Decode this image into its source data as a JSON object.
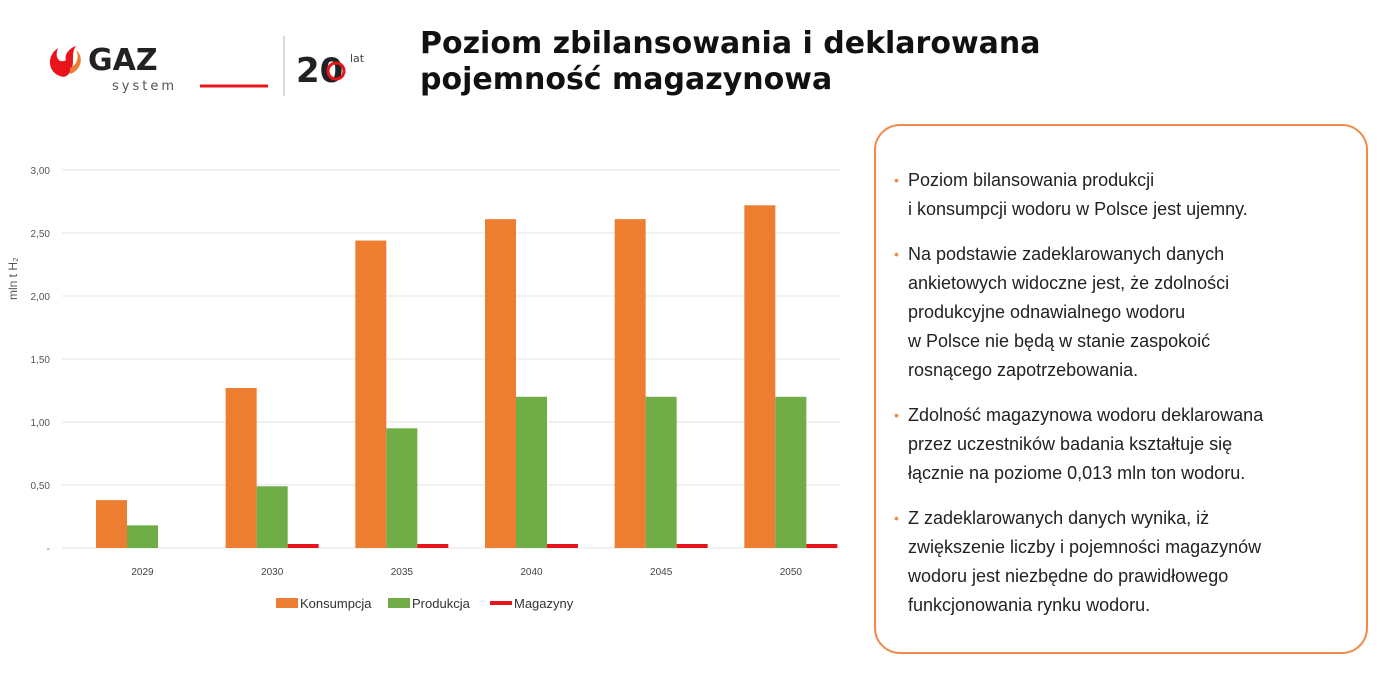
{
  "header": {
    "logo_text": "GAZ",
    "logo_subtext": "system",
    "anniversary_text": "20",
    "anniversary_suffix": "lat",
    "title_line1": "Poziom zbilansowania i deklarowana",
    "title_line2": "pojemność magazynowa"
  },
  "colors": {
    "accent": "#f08a4b",
    "consumption": "#ed7d31",
    "production": "#70ad47",
    "storage": "#e8141c"
  },
  "chart_data": {
    "type": "bar",
    "ylabel": "mln t H₂",
    "ylim": [
      0,
      3
    ],
    "yticks": [
      "-",
      "0,50",
      "1,00",
      "1,50",
      "2,00",
      "2,50",
      "3,00"
    ],
    "categories": [
      "2029",
      "2030",
      "2035",
      "2040",
      "2045",
      "2050"
    ],
    "series": [
      {
        "name": "Konsumpcja",
        "values": [
          0.38,
          1.27,
          2.44,
          2.61,
          2.61,
          2.72
        ]
      },
      {
        "name": "Produkcja",
        "values": [
          0.18,
          0.49,
          0.95,
          1.2,
          1.2,
          1.2
        ]
      },
      {
        "name": "Magazyny",
        "values": [
          null,
          0.013,
          0.013,
          0.013,
          0.013,
          0.013
        ]
      }
    ],
    "legend_position": "bottom",
    "grid": true
  },
  "panel": {
    "bullets": [
      "Poziom bilansowania produkcji\ni konsumpcji wodoru w Polsce jest ujemny.",
      "Na podstawie zadeklarowanych danych\nankietowych widoczne jest, że zdolności\nprodukcyjne odnawialnego wodoru\nw Polsce nie będą w stanie zaspokoić\nrosnącego zapotrzebowania.",
      "Zdolność magazynowa wodoru deklarowana\nprzez uczestników badania kształtuje się\nłącznie na poziome 0,013 mln ton wodoru.",
      "Z zadeklarowanych danych wynika, iż\nzwiększenie liczby i pojemności magazynów\nwodoru jest niezbędne do prawidłowego\nfunkcjonowania rynku wodoru."
    ]
  }
}
